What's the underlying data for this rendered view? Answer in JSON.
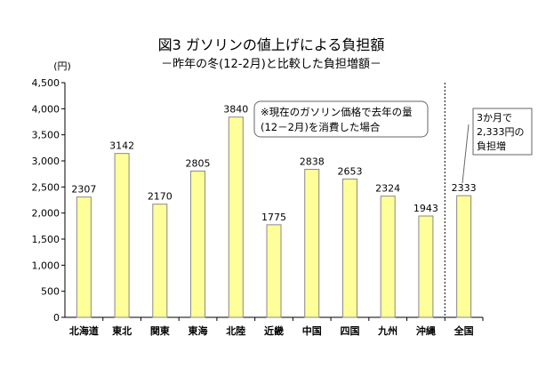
{
  "chart_data": {
    "type": "bar",
    "title": "図3  ガソリンの値上げによる負担額",
    "subtitle": "－昨年の冬(12-2月)と比較した負担増額－",
    "ylabel": "(円)",
    "xlabel": "",
    "ylim": [
      0,
      4500
    ],
    "yticks": [
      0,
      500,
      1000,
      1500,
      2000,
      2500,
      3000,
      3500,
      4000,
      4500
    ],
    "ytick_labels": [
      "0",
      "500",
      "1,000",
      "1,500",
      "2,000",
      "2,500",
      "3,000",
      "3,500",
      "4,000",
      "4,500"
    ],
    "categories": [
      "北海道",
      "東北",
      "関東",
      "東海",
      "北陸",
      "近畿",
      "中国",
      "四国",
      "九州",
      "沖縄",
      "全国"
    ],
    "values": [
      2307,
      3142,
      2170,
      2805,
      3840,
      1775,
      2838,
      2653,
      2324,
      1943,
      2333
    ],
    "data_labels": [
      "2307",
      "3142",
      "2170",
      "2805",
      "3840",
      "1775",
      "2838",
      "2653",
      "2324",
      "1943",
      "2333"
    ],
    "grid": false,
    "bar_color": "#ffff99",
    "bar_stroke": "#888888",
    "annotations": [
      {
        "id": "note",
        "lines": [
          "※現在のガソリン価格で去年の量",
          "(12－2月)を消費した場合"
        ]
      },
      {
        "id": "callout",
        "lines": [
          "3か月で",
          "2,333円の",
          "負担増"
        ]
      }
    ],
    "separator_before": "全国"
  }
}
